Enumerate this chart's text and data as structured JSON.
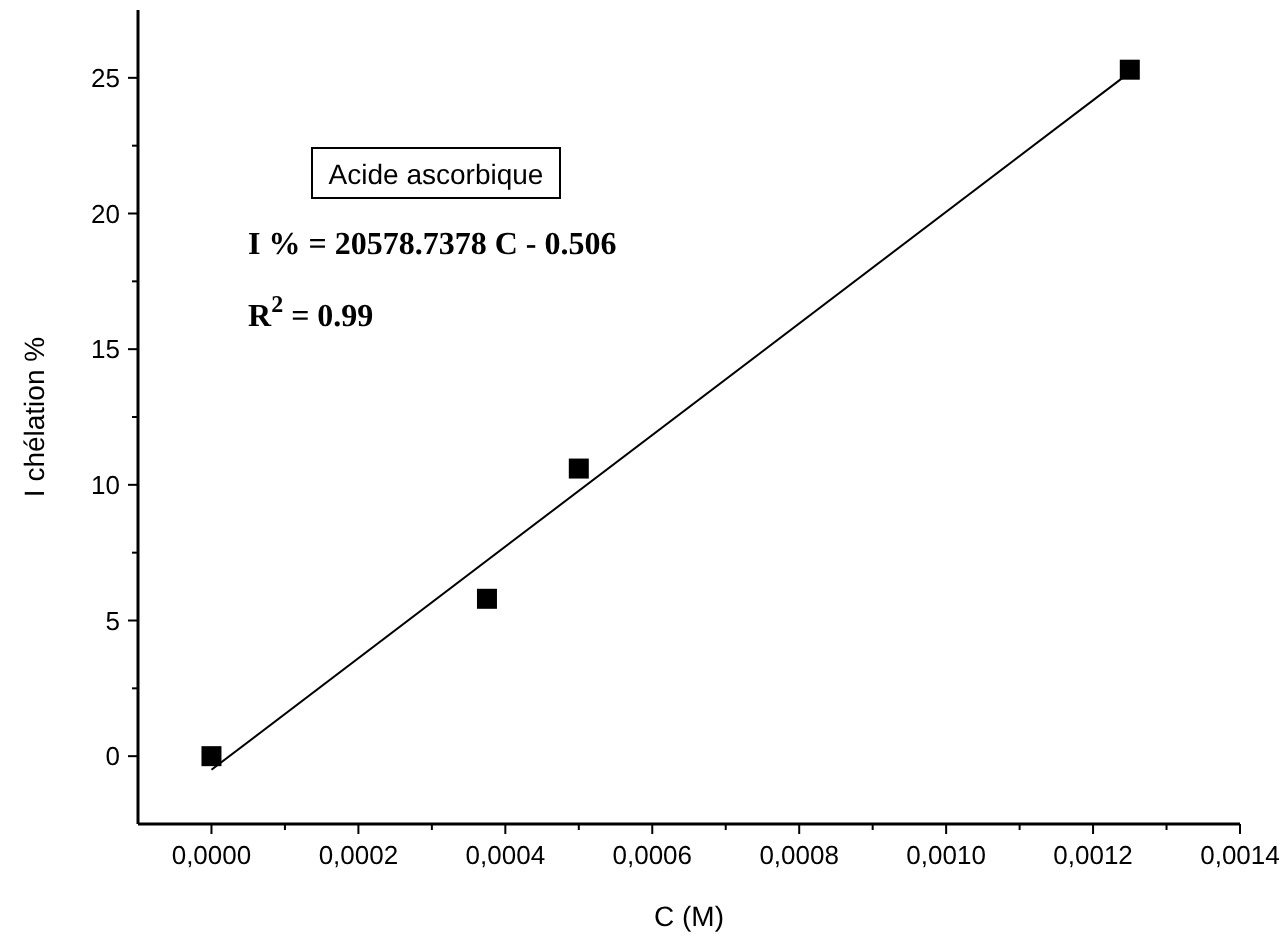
{
  "chart_data": {
    "type": "scatter",
    "xlabel": "C (M)",
    "ylabel": "I chélation %",
    "x": [
      0,
      0.000375,
      0.0005,
      0.00125
    ],
    "series": [
      {
        "color": "#000000",
        "values": [
          0,
          5.8,
          10.6,
          25.3
        ],
        "marker": "square"
      },
      {
        "type": "line",
        "color": "#000000",
        "x": [
          0,
          0.00125
        ],
        "values": [
          -0.5,
          25.2
        ],
        "line_style": "solid"
      }
    ],
    "xlim": [
      -0.0001,
      0.0014
    ],
    "xticks": [
      {
        "value": 0,
        "label": "0,0000"
      },
      {
        "value": 0.0001,
        "label": null
      },
      {
        "value": 0.0002,
        "label": "0,0002"
      },
      {
        "value": 0.0003,
        "label": null
      },
      {
        "value": 0.0004,
        "label": "0,0004"
      },
      {
        "value": 0.0005,
        "label": null
      },
      {
        "value": 0.0006,
        "label": "0,0006"
      },
      {
        "value": 0.0007,
        "label": null
      },
      {
        "value": 0.0008,
        "label": "0,0008"
      },
      {
        "value": 0.0009,
        "label": null
      },
      {
        "value": 0.001,
        "label": "0,0010"
      },
      {
        "value": 0.0011,
        "label": null
      },
      {
        "value": 0.0012,
        "label": "0,0012"
      },
      {
        "value": 0.0013,
        "label": null
      },
      {
        "value": 0.0014,
        "label": "0,0014"
      }
    ],
    "ylim": [
      -2.5,
      27.5
    ],
    "yticks": [
      0,
      {
        "value": 2.5,
        "label": null
      },
      5,
      {
        "value": 7.5,
        "label": null
      },
      10,
      {
        "value": 12.5,
        "label": null
      },
      15,
      {
        "value": 17.5,
        "label": null
      },
      20,
      {
        "value": 22.5,
        "label": null
      },
      25
    ],
    "annotations": [
      "Acide ascorbique",
      "I % = 20578.7378 C - 0.506",
      "R$^{2}$ = 0.99"
    ],
    "grid": false
  }
}
